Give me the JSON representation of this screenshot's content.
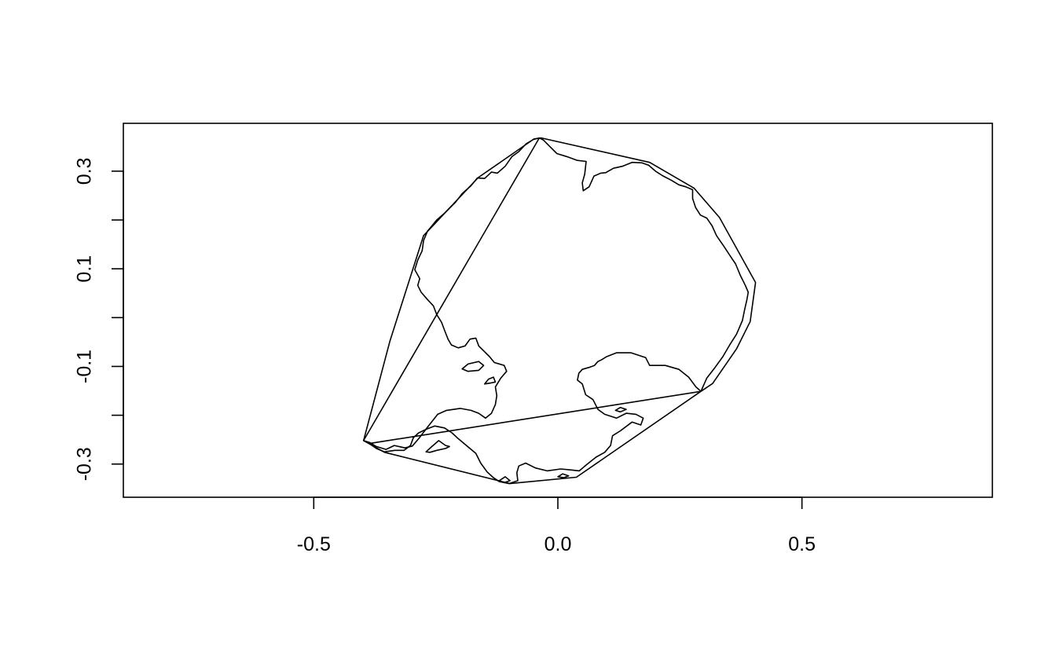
{
  "chart_data": {
    "type": "line",
    "title": "",
    "xlabel": "",
    "ylabel": "",
    "xlim": [
      -0.89,
      0.89
    ],
    "ylim": [
      -0.368,
      0.398
    ],
    "x_ticks": [
      {
        "value": -0.5,
        "label": "-0.5"
      },
      {
        "value": 0.0,
        "label": "0.0"
      },
      {
        "value": 0.5,
        "label": "0.5"
      }
    ],
    "y_ticks": [
      {
        "value": -0.3,
        "label": "-0.3"
      },
      {
        "value": -0.2,
        "label": ""
      },
      {
        "value": -0.1,
        "label": "-0.1"
      },
      {
        "value": 0.0,
        "label": ""
      },
      {
        "value": 0.1,
        "label": "0.1"
      },
      {
        "value": 0.2,
        "label": ""
      },
      {
        "value": 0.3,
        "label": "0.3"
      }
    ],
    "grid": false,
    "legend": "none",
    "color": "#000000",
    "series": [
      {
        "closed": true,
        "points": [
          [
            -0.398,
            -0.252
          ],
          [
            -0.355,
            -0.276
          ],
          [
            -0.098,
            -0.34
          ],
          [
            0.038,
            -0.327
          ],
          [
            0.293,
            -0.151
          ],
          [
            0.317,
            -0.135
          ],
          [
            0.366,
            -0.064
          ],
          [
            0.394,
            -0.008
          ],
          [
            0.405,
            0.072
          ],
          [
            0.331,
            0.205
          ],
          [
            0.279,
            0.265
          ],
          [
            0.188,
            0.318
          ],
          [
            -0.034,
            0.368
          ],
          [
            -0.049,
            0.366
          ],
          [
            -0.163,
            0.287
          ],
          [
            -0.275,
            0.168
          ],
          [
            -0.344,
            -0.048
          ]
        ]
      },
      {
        "closed": true,
        "points": [
          [
            -0.038,
            0.368
          ],
          [
            -0.05,
            0.365
          ],
          [
            -0.065,
            0.356
          ],
          [
            -0.08,
            0.34
          ],
          [
            -0.094,
            0.33
          ],
          [
            -0.108,
            0.31
          ],
          [
            -0.124,
            0.296
          ],
          [
            -0.136,
            0.298
          ],
          [
            -0.15,
            0.285
          ],
          [
            -0.165,
            0.286
          ],
          [
            -0.178,
            0.27
          ],
          [
            -0.196,
            0.254
          ],
          [
            -0.21,
            0.236
          ],
          [
            -0.232,
            0.214
          ],
          [
            -0.248,
            0.2
          ],
          [
            -0.267,
            0.177
          ],
          [
            -0.275,
            0.158
          ],
          [
            -0.278,
            0.137
          ],
          [
            -0.287,
            0.118
          ],
          [
            -0.293,
            0.098
          ],
          [
            -0.283,
            0.08
          ],
          [
            -0.287,
            0.066
          ],
          [
            -0.28,
            0.052
          ],
          [
            -0.268,
            0.038
          ],
          [
            -0.255,
            0.024
          ],
          [
            -0.248,
            0.006
          ],
          [
            -0.238,
            -0.01
          ],
          [
            -0.232,
            -0.026
          ],
          [
            -0.225,
            -0.044
          ],
          [
            -0.218,
            -0.056
          ],
          [
            -0.204,
            -0.062
          ],
          [
            -0.19,
            -0.058
          ],
          [
            -0.18,
            -0.044
          ],
          [
            -0.168,
            -0.042
          ],
          [
            -0.162,
            -0.058
          ],
          [
            -0.15,
            -0.07
          ],
          [
            -0.14,
            -0.08
          ],
          [
            -0.13,
            -0.092
          ],
          [
            -0.11,
            -0.098
          ],
          [
            -0.105,
            -0.11
          ],
          [
            -0.117,
            -0.124
          ],
          [
            -0.128,
            -0.142
          ],
          [
            -0.125,
            -0.16
          ],
          [
            -0.128,
            -0.178
          ],
          [
            -0.136,
            -0.196
          ],
          [
            -0.148,
            -0.206
          ],
          [
            -0.162,
            -0.196
          ],
          [
            -0.178,
            -0.19
          ],
          [
            -0.2,
            -0.186
          ],
          [
            -0.228,
            -0.19
          ],
          [
            -0.246,
            -0.198
          ],
          [
            -0.265,
            -0.222
          ],
          [
            -0.285,
            -0.248
          ],
          [
            -0.298,
            -0.263
          ],
          [
            -0.313,
            -0.267
          ],
          [
            -0.335,
            -0.262
          ],
          [
            -0.352,
            -0.27
          ],
          [
            -0.372,
            -0.264
          ],
          [
            -0.385,
            -0.256
          ],
          [
            -0.398,
            -0.252
          ]
        ]
      },
      {
        "closed": true,
        "points": [
          [
            -0.386,
            -0.258
          ],
          [
            -0.372,
            -0.268
          ],
          [
            -0.355,
            -0.275
          ],
          [
            -0.334,
            -0.272
          ],
          [
            -0.315,
            -0.272
          ],
          [
            -0.302,
            -0.262
          ],
          [
            -0.296,
            -0.246
          ],
          [
            -0.285,
            -0.236
          ],
          [
            -0.268,
            -0.228
          ],
          [
            -0.252,
            -0.222
          ],
          [
            -0.232,
            -0.226
          ],
          [
            -0.217,
            -0.236
          ],
          [
            -0.204,
            -0.248
          ],
          [
            -0.185,
            -0.264
          ],
          [
            -0.168,
            -0.278
          ],
          [
            -0.158,
            -0.298
          ],
          [
            -0.145,
            -0.316
          ],
          [
            -0.132,
            -0.328
          ],
          [
            -0.12,
            -0.336
          ],
          [
            -0.1,
            -0.34
          ],
          [
            -0.082,
            -0.334
          ],
          [
            -0.084,
            -0.318
          ],
          [
            -0.08,
            -0.304
          ],
          [
            -0.066,
            -0.298
          ],
          [
            -0.046,
            -0.308
          ],
          [
            -0.022,
            -0.314
          ],
          [
            0.006,
            -0.31
          ],
          [
            0.026,
            -0.312
          ],
          [
            0.044,
            -0.314
          ],
          [
            0.058,
            -0.302
          ],
          [
            0.078,
            -0.286
          ],
          [
            0.096,
            -0.276
          ],
          [
            0.108,
            -0.262
          ],
          [
            0.112,
            -0.242
          ],
          [
            0.128,
            -0.232
          ],
          [
            0.152,
            -0.214
          ],
          [
            0.17,
            -0.22
          ],
          [
            0.175,
            -0.206
          ],
          [
            0.16,
            -0.198
          ],
          [
            0.14,
            -0.196
          ],
          [
            0.12,
            -0.206
          ],
          [
            0.096,
            -0.198
          ],
          [
            0.082,
            -0.188
          ],
          [
            0.072,
            -0.168
          ],
          [
            0.057,
            -0.158
          ],
          [
            0.05,
            -0.136
          ],
          [
            0.04,
            -0.128
          ],
          [
            0.043,
            -0.114
          ],
          [
            0.05,
            -0.106
          ],
          [
            0.064,
            -0.102
          ],
          [
            0.075,
            -0.098
          ],
          [
            0.082,
            -0.09
          ],
          [
            0.09,
            -0.086
          ],
          [
            0.1,
            -0.08
          ],
          [
            0.12,
            -0.072
          ],
          [
            0.15,
            -0.072
          ],
          [
            0.18,
            -0.082
          ],
          [
            0.188,
            -0.098
          ],
          [
            0.22,
            -0.098
          ],
          [
            0.248,
            -0.106
          ],
          [
            0.268,
            -0.122
          ],
          [
            0.283,
            -0.142
          ],
          [
            0.293,
            -0.151
          ]
        ]
      },
      {
        "closed": false,
        "points": [
          [
            0.293,
            -0.151
          ],
          [
            0.305,
            -0.124
          ],
          [
            0.322,
            -0.102
          ],
          [
            0.338,
            -0.08
          ],
          [
            0.352,
            -0.056
          ],
          [
            0.366,
            -0.034
          ],
          [
            0.378,
            -0.006
          ],
          [
            0.382,
            0.014
          ],
          [
            0.387,
            0.036
          ],
          [
            0.39,
            0.052
          ],
          [
            0.384,
            0.066
          ],
          [
            0.374,
            0.086
          ],
          [
            0.364,
            0.11
          ],
          [
            0.352,
            0.128
          ],
          [
            0.34,
            0.146
          ],
          [
            0.325,
            0.168
          ],
          [
            0.316,
            0.188
          ],
          [
            0.305,
            0.204
          ],
          [
            0.292,
            0.21
          ],
          [
            0.282,
            0.226
          ],
          [
            0.276,
            0.244
          ],
          [
            0.276,
            0.262
          ],
          [
            0.262,
            0.268
          ],
          [
            0.248,
            0.272
          ],
          [
            0.233,
            0.281
          ],
          [
            0.214,
            0.291
          ],
          [
            0.2,
            0.3
          ],
          [
            0.186,
            0.312
          ],
          [
            0.172,
            0.317
          ],
          [
            0.152,
            0.318
          ],
          [
            0.132,
            0.31
          ],
          [
            0.114,
            0.306
          ],
          [
            0.098,
            0.297
          ],
          [
            0.088,
            0.296
          ],
          [
            0.074,
            0.29
          ],
          [
            0.064,
            0.268
          ],
          [
            0.052,
            0.26
          ],
          [
            0.05,
            0.276
          ],
          [
            0.055,
            0.294
          ],
          [
            0.058,
            0.32
          ],
          [
            0.04,
            0.322
          ],
          [
            0.018,
            0.33
          ],
          [
            -0.002,
            0.336
          ],
          [
            -0.018,
            0.352
          ],
          [
            -0.03,
            0.364
          ],
          [
            -0.038,
            0.368
          ]
        ]
      },
      {
        "closed": true,
        "points": [
          [
            -0.196,
            -0.105
          ],
          [
            -0.184,
            -0.095
          ],
          [
            -0.162,
            -0.09
          ],
          [
            -0.152,
            -0.098
          ],
          [
            -0.162,
            -0.108
          ],
          [
            -0.184,
            -0.11
          ],
          [
            -0.196,
            -0.105
          ]
        ]
      },
      {
        "closed": true,
        "points": [
          [
            -0.15,
            -0.136
          ],
          [
            -0.142,
            -0.126
          ],
          [
            -0.132,
            -0.122
          ],
          [
            -0.128,
            -0.132
          ],
          [
            -0.138,
            -0.134
          ],
          [
            -0.15,
            -0.136
          ]
        ]
      },
      {
        "closed": true,
        "points": [
          [
            -0.27,
            -0.275
          ],
          [
            -0.258,
            -0.264
          ],
          [
            -0.244,
            -0.252
          ],
          [
            -0.23,
            -0.262
          ],
          [
            -0.222,
            -0.264
          ],
          [
            -0.23,
            -0.268
          ],
          [
            -0.248,
            -0.272
          ],
          [
            -0.262,
            -0.276
          ],
          [
            -0.27,
            -0.275
          ]
        ]
      },
      {
        "closed": true,
        "points": [
          [
            0.118,
            -0.19
          ],
          [
            0.128,
            -0.184
          ],
          [
            0.14,
            -0.188
          ],
          [
            0.128,
            -0.193
          ],
          [
            0.118,
            -0.19
          ]
        ]
      },
      {
        "closed": true,
        "points": [
          [
            0.0,
            -0.326
          ],
          [
            0.01,
            -0.32
          ],
          [
            0.022,
            -0.324
          ],
          [
            0.012,
            -0.328
          ],
          [
            0.0,
            -0.326
          ]
        ]
      },
      {
        "closed": true,
        "points": [
          [
            -0.12,
            -0.334
          ],
          [
            -0.108,
            -0.326
          ],
          [
            -0.098,
            -0.334
          ],
          [
            -0.11,
            -0.338
          ],
          [
            -0.12,
            -0.334
          ]
        ]
      }
    ]
  }
}
